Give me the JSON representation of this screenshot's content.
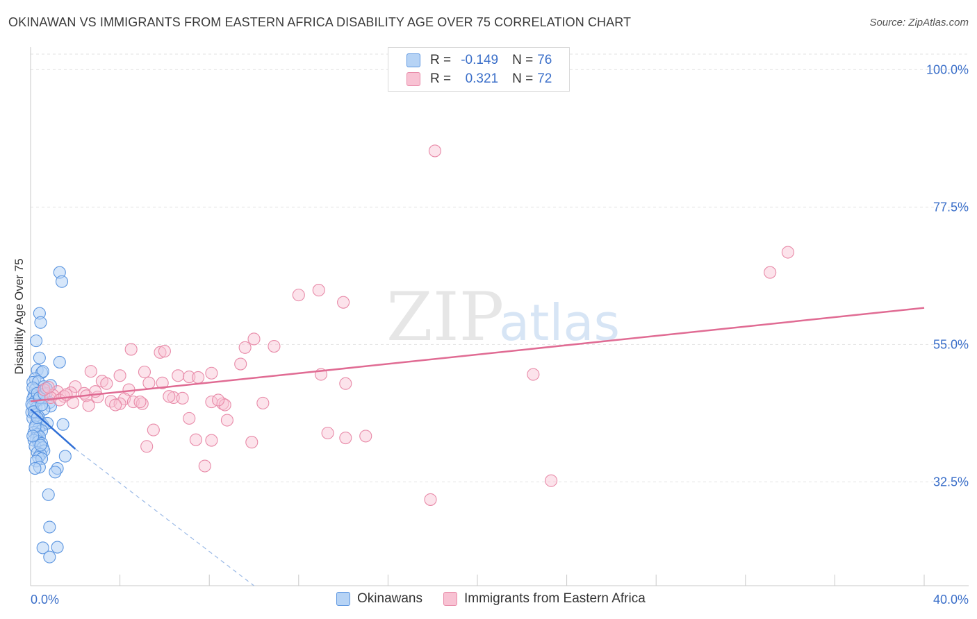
{
  "title": "OKINAWAN VS IMMIGRANTS FROM EASTERN AFRICA DISABILITY AGE OVER 75 CORRELATION CHART",
  "source": "Source: ZipAtlas.com",
  "watermark": {
    "zip": "ZIP",
    "atlas": "atlas"
  },
  "legend": {
    "row1": {
      "r_label": "R = ",
      "r_value": "-0.149",
      "n_label": "N = ",
      "n_value": "76"
    },
    "row2": {
      "r_label": "R = ",
      "r_value": "0.321",
      "n_label": "N = ",
      "n_value": "72"
    }
  },
  "chart_data": {
    "type": "scatter",
    "title": "OKINAWAN VS IMMIGRANTS FROM EASTERN AFRICA DISABILITY AGE OVER 75 CORRELATION CHART",
    "xlabel": "",
    "ylabel": "Disability Age Over 75",
    "xlim": [
      0,
      40
    ],
    "ylim": [
      15.5,
      103
    ],
    "x_tick_labels": [
      "0.0%",
      "40.0%"
    ],
    "y_ticks": [
      32.5,
      55.0,
      77.5,
      100.0
    ],
    "y_tick_labels": [
      "32.5%",
      "55.0%",
      "77.5%",
      "100.0%"
    ],
    "colors": {
      "okinawans_fill": "#b6d3f5",
      "okinawans_stroke": "#5b95e0",
      "okinawans_line": "#2f6fd6",
      "eastafrica_fill": "#f8c2d3",
      "eastafrica_stroke": "#e88aa8",
      "eastafrica_line": "#e06b93",
      "axis_label": "#3b6fc9",
      "grid": "#e2e2e2"
    },
    "series": [
      {
        "name": "Okinawans",
        "r": -0.149,
        "n": 76,
        "trend": {
          "x0": 0.0,
          "y0": 44.4,
          "x1": 2.0,
          "y1": 37.9,
          "dash_x1": 10.0,
          "dash_y1": 15.5
        },
        "points": [
          [
            1.3,
            66.8
          ],
          [
            1.4,
            65.3
          ],
          [
            0.4,
            60.1
          ],
          [
            0.45,
            58.6
          ],
          [
            0.25,
            55.6
          ],
          [
            0.4,
            52.8
          ],
          [
            1.3,
            52.1
          ],
          [
            0.3,
            50.8
          ],
          [
            0.5,
            50.4
          ],
          [
            0.55,
            50.6
          ],
          [
            0.2,
            49.4
          ],
          [
            0.1,
            48.8
          ],
          [
            0.35,
            48.9
          ],
          [
            0.6,
            48.1
          ],
          [
            0.9,
            48.3
          ],
          [
            0.2,
            47.6
          ],
          [
            0.5,
            47.3
          ],
          [
            0.7,
            47.0
          ],
          [
            0.15,
            46.7
          ],
          [
            0.3,
            46.5
          ],
          [
            0.1,
            46.1
          ],
          [
            0.2,
            45.7
          ],
          [
            0.4,
            45.9
          ],
          [
            0.85,
            45.5
          ],
          [
            0.1,
            44.9
          ],
          [
            0.25,
            44.6
          ],
          [
            0.9,
            44.9
          ],
          [
            0.6,
            44.4
          ],
          [
            0.05,
            43.9
          ],
          [
            0.2,
            43.6
          ],
          [
            0.35,
            43.2
          ],
          [
            0.1,
            42.9
          ],
          [
            0.45,
            42.3
          ],
          [
            0.25,
            42.0
          ],
          [
            0.55,
            41.8
          ],
          [
            0.75,
            42.1
          ],
          [
            1.45,
            41.9
          ],
          [
            0.35,
            41.2
          ],
          [
            0.5,
            40.9
          ],
          [
            0.15,
            40.6
          ],
          [
            0.3,
            40.3
          ],
          [
            0.25,
            39.7
          ],
          [
            0.4,
            39.9
          ],
          [
            0.15,
            39.3
          ],
          [
            0.35,
            39.1
          ],
          [
            0.5,
            38.8
          ],
          [
            0.2,
            38.3
          ],
          [
            0.55,
            38.1
          ],
          [
            0.6,
            37.6
          ],
          [
            0.3,
            37.3
          ],
          [
            0.45,
            37.0
          ],
          [
            0.35,
            36.5
          ],
          [
            0.5,
            36.3
          ],
          [
            0.25,
            35.9
          ],
          [
            1.55,
            36.7
          ],
          [
            0.4,
            34.9
          ],
          [
            0.2,
            34.7
          ],
          [
            1.2,
            34.7
          ],
          [
            1.1,
            34.1
          ],
          [
            0.8,
            30.4
          ],
          [
            0.85,
            25.1
          ],
          [
            0.55,
            21.7
          ],
          [
            1.2,
            21.8
          ],
          [
            0.85,
            20.2
          ],
          [
            0.1,
            47.9
          ],
          [
            0.05,
            45.2
          ],
          [
            0.15,
            44.0
          ],
          [
            0.3,
            47.0
          ],
          [
            0.4,
            46.3
          ],
          [
            0.5,
            45.1
          ],
          [
            0.2,
            41.5
          ],
          [
            0.3,
            43.0
          ],
          [
            0.45,
            38.5
          ],
          [
            0.1,
            40.0
          ],
          [
            0.6,
            46.9
          ],
          [
            0.7,
            47.8
          ]
        ]
      },
      {
        "name": "Immigrants from Eastern Africa",
        "r": 0.321,
        "n": 72,
        "trend": {
          "x0": 0.0,
          "y0": 45.7,
          "x1": 40.0,
          "y1": 61.0
        },
        "points": [
          [
            18.1,
            86.7
          ],
          [
            33.9,
            70.1
          ],
          [
            33.1,
            66.8
          ],
          [
            12.9,
            63.9
          ],
          [
            12.0,
            63.1
          ],
          [
            14.0,
            61.9
          ],
          [
            10.0,
            55.9
          ],
          [
            10.9,
            54.7
          ],
          [
            9.6,
            54.5
          ],
          [
            4.5,
            54.2
          ],
          [
            5.8,
            53.7
          ],
          [
            6.0,
            53.9
          ],
          [
            9.4,
            51.8
          ],
          [
            2.7,
            50.6
          ],
          [
            5.1,
            50.5
          ],
          [
            4.0,
            49.9
          ],
          [
            6.6,
            49.9
          ],
          [
            7.1,
            49.7
          ],
          [
            7.5,
            49.6
          ],
          [
            8.1,
            50.3
          ],
          [
            13.0,
            50.1
          ],
          [
            22.5,
            50.1
          ],
          [
            3.2,
            49.0
          ],
          [
            3.4,
            48.6
          ],
          [
            5.3,
            48.7
          ],
          [
            5.9,
            48.7
          ],
          [
            14.1,
            48.6
          ],
          [
            2.0,
            48.1
          ],
          [
            4.4,
            47.6
          ],
          [
            1.2,
            47.3
          ],
          [
            1.8,
            47.1
          ],
          [
            2.4,
            47.0
          ],
          [
            1.0,
            46.7
          ],
          [
            2.5,
            46.6
          ],
          [
            1.5,
            46.5
          ],
          [
            3.0,
            46.4
          ],
          [
            0.9,
            46.3
          ],
          [
            6.4,
            46.3
          ],
          [
            6.8,
            46.2
          ],
          [
            4.2,
            46.1
          ],
          [
            1.3,
            45.9
          ],
          [
            3.6,
            45.7
          ],
          [
            1.9,
            45.5
          ],
          [
            4.6,
            45.6
          ],
          [
            5.0,
            45.3
          ],
          [
            8.1,
            45.6
          ],
          [
            8.6,
            45.3
          ],
          [
            8.7,
            45.1
          ],
          [
            10.4,
            45.4
          ],
          [
            4.0,
            45.3
          ],
          [
            3.8,
            45.1
          ],
          [
            8.4,
            45.9
          ],
          [
            4.9,
            45.6
          ],
          [
            2.6,
            45.0
          ],
          [
            7.1,
            42.9
          ],
          [
            8.8,
            42.6
          ],
          [
            5.5,
            41.0
          ],
          [
            13.3,
            40.5
          ],
          [
            15.0,
            40.0
          ],
          [
            14.1,
            39.7
          ],
          [
            7.4,
            39.4
          ],
          [
            8.1,
            39.3
          ],
          [
            9.9,
            39.0
          ],
          [
            5.2,
            38.3
          ],
          [
            7.8,
            35.1
          ],
          [
            23.3,
            32.7
          ],
          [
            17.9,
            29.6
          ],
          [
            0.6,
            47.6
          ],
          [
            0.8,
            48.0
          ],
          [
            1.6,
            46.8
          ],
          [
            2.9,
            47.3
          ],
          [
            6.2,
            46.5
          ]
        ]
      }
    ]
  },
  "bottom_legend": [
    "Okinawans",
    "Immigrants from Eastern Africa"
  ]
}
